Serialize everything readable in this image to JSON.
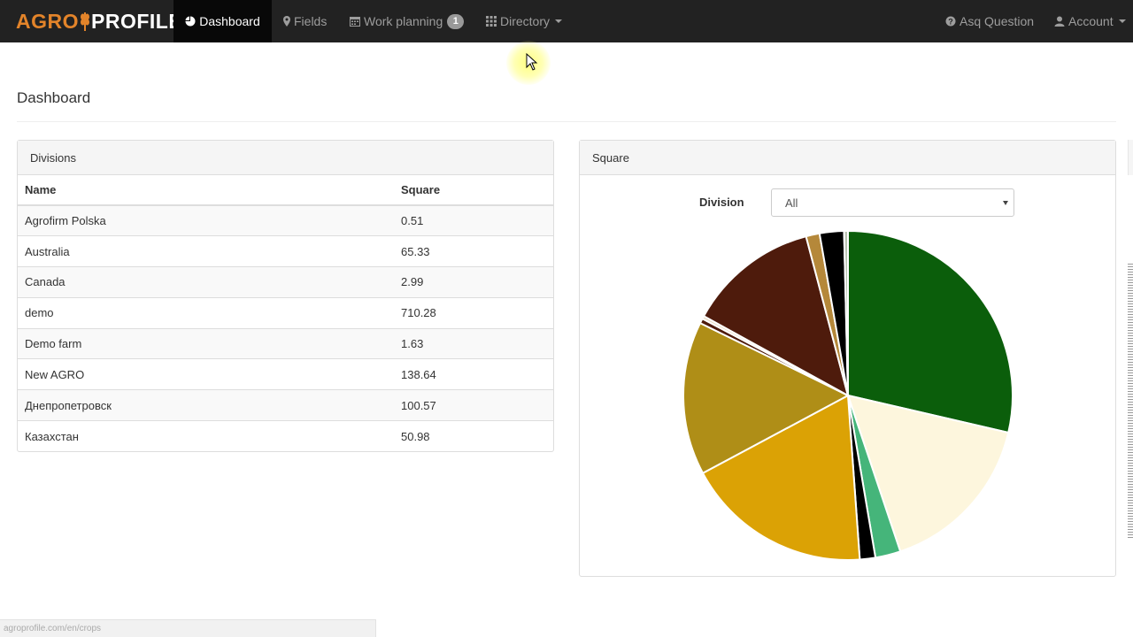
{
  "brand": {
    "part1": "AGRO",
    "part2": "PROFILE"
  },
  "nav": {
    "dashboard": "Dashboard",
    "fields": "Fields",
    "work_planning": "Work planning",
    "work_planning_badge": "1",
    "directory": "Directory",
    "ask_question": "Asq Question",
    "account": "Account"
  },
  "page": {
    "title": "Dashboard"
  },
  "divisions_panel": {
    "heading": "Divisions",
    "columns": [
      "Name",
      "Square"
    ],
    "rows": [
      {
        "name": "Agrofirm Polska",
        "square": "0.51"
      },
      {
        "name": "Australia",
        "square": "65.33"
      },
      {
        "name": "Canada",
        "square": "2.99"
      },
      {
        "name": "demo",
        "square": "710.28"
      },
      {
        "name": "Demo farm",
        "square": "1.63"
      },
      {
        "name": "New AGRO",
        "square": "138.64"
      },
      {
        "name": "Днепропетровск",
        "square": "100.57"
      },
      {
        "name": "Казахстан",
        "square": "50.98"
      }
    ]
  },
  "square_panel": {
    "heading": "Square",
    "filter_label": "Division",
    "filter_value": "All"
  },
  "chart_data": {
    "type": "pie",
    "title": "",
    "slices": [
      {
        "value": 30.0,
        "color": "#0b5e0b"
      },
      {
        "value": 17.0,
        "color": "#fdf6dd"
      },
      {
        "value": 2.6,
        "color": "#45b57a"
      },
      {
        "value": 1.6,
        "color": "#000000"
      },
      {
        "value": 19.2,
        "color": "#dba205"
      },
      {
        "value": 15.8,
        "color": "#af8e17"
      },
      {
        "value": 0.5,
        "color": "#4e1b0c"
      },
      {
        "value": 0.3,
        "color": "#e7d9c0"
      },
      {
        "value": 13.5,
        "color": "#4e1b0c"
      },
      {
        "value": 1.4,
        "color": "#b5883a"
      },
      {
        "value": 2.5,
        "color": "#000000"
      },
      {
        "value": 0.4,
        "color": "#b9c3b2"
      }
    ]
  },
  "statusbar": {
    "url": "agroprofile.com/en/crops"
  }
}
